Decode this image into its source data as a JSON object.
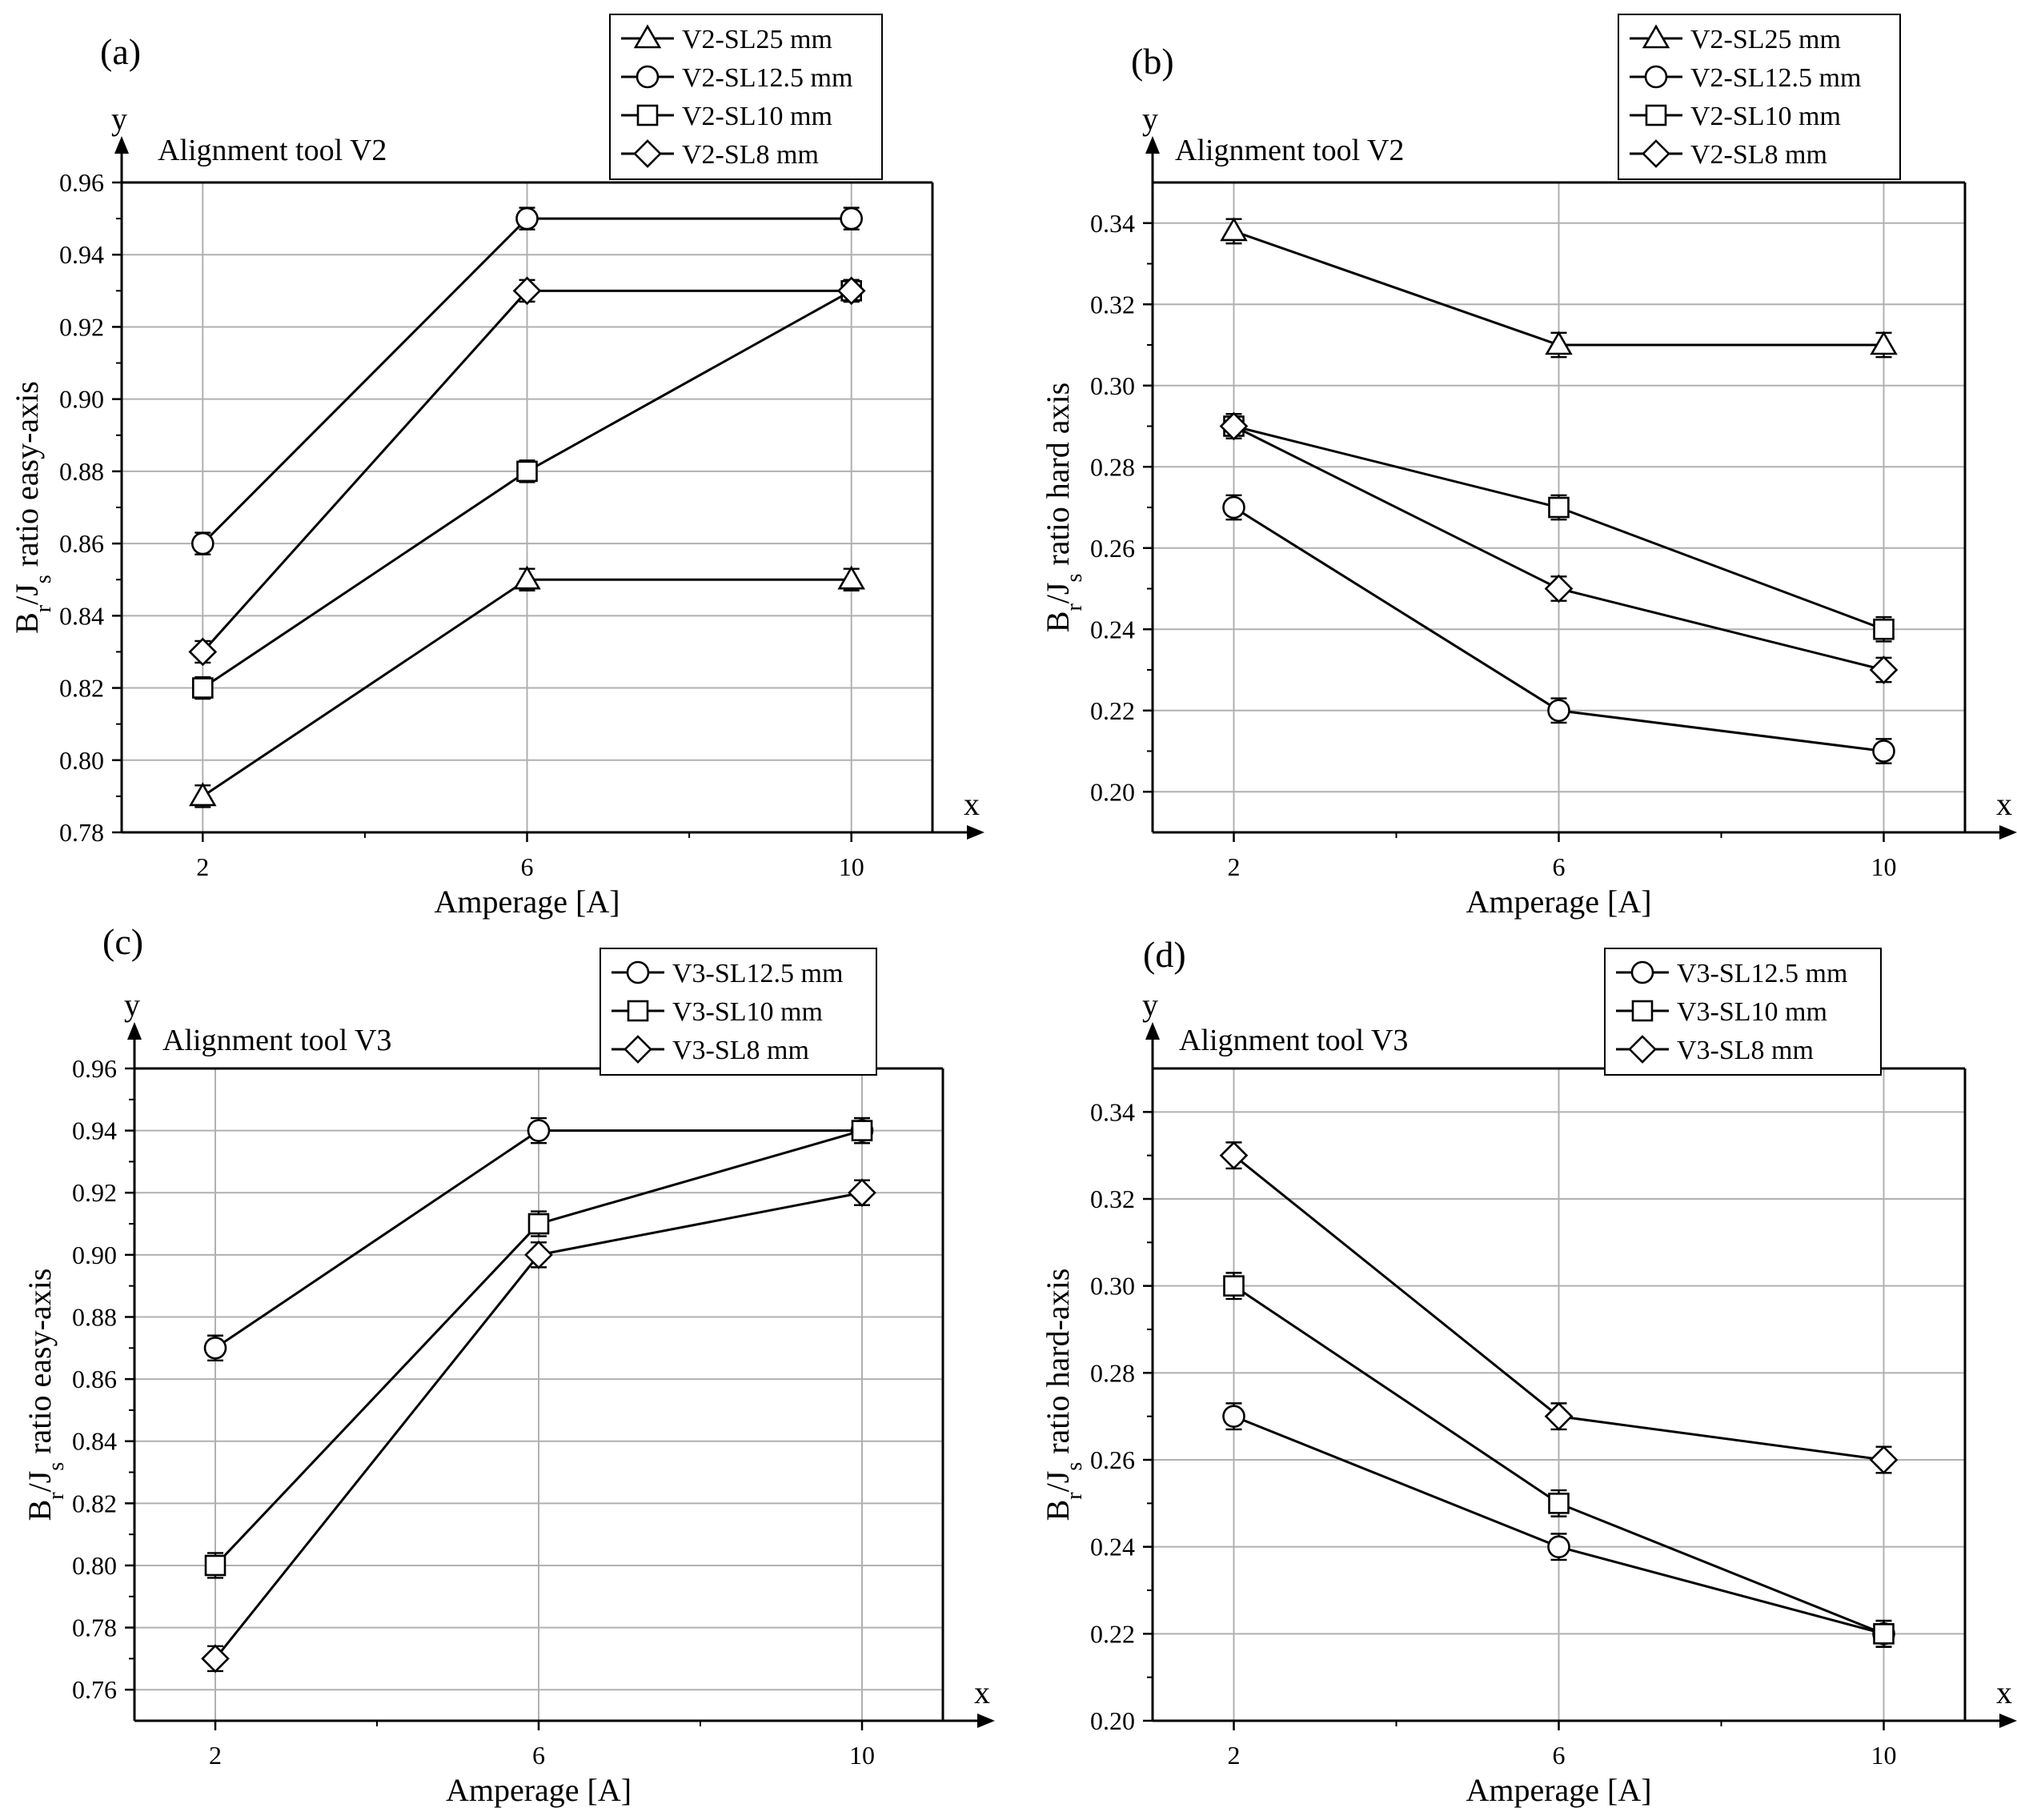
{
  "chart_data": [
    {
      "id": "a",
      "type": "line",
      "panel_label": "(a)",
      "annotation": "Alignment tool V2",
      "xlabel": "Amperage [A]",
      "ylabel": "Br/Js ratio easy-axis",
      "ylabel_parts": [
        "B",
        "r",
        "/J",
        "s",
        " ratio easy-axis"
      ],
      "x_axis_letter": "x",
      "y_axis_letter": "y",
      "x": [
        2,
        6,
        10
      ],
      "xlim": [
        1,
        11
      ],
      "ylim": [
        0.78,
        0.96
      ],
      "yticks": [
        0.78,
        0.8,
        0.82,
        0.84,
        0.86,
        0.88,
        0.9,
        0.92,
        0.94,
        0.96
      ],
      "ytick_labels": [
        "0.78",
        "0.80",
        "0.82",
        "0.84",
        "0.86",
        "0.88",
        "0.90",
        "0.92",
        "0.94",
        "0.96"
      ],
      "xtick_labels": [
        "2",
        "6",
        "10"
      ],
      "grid": true,
      "legend_position": "top-right",
      "error": 0.003,
      "series": [
        {
          "name": "V2-SL25 mm",
          "marker": "triangle",
          "values": [
            0.79,
            0.85,
            0.85
          ]
        },
        {
          "name": "V2-SL12.5 mm",
          "marker": "circle",
          "values": [
            0.86,
            0.95,
            0.95
          ]
        },
        {
          "name": "V2-SL10 mm",
          "marker": "square",
          "values": [
            0.82,
            0.88,
            0.93
          ]
        },
        {
          "name": "V2-SL8 mm",
          "marker": "diamond",
          "values": [
            0.83,
            0.93,
            0.93
          ]
        }
      ]
    },
    {
      "id": "b",
      "type": "line",
      "panel_label": "(b)",
      "annotation": "Alignment tool V2",
      "xlabel": "Amperage [A]",
      "ylabel": "Br/Js ratio hard axis",
      "ylabel_parts": [
        "B",
        "r",
        "/J",
        "s",
        " ratio hard axis"
      ],
      "x_axis_letter": "x",
      "y_axis_letter": "y",
      "x": [
        2,
        6,
        10
      ],
      "xlim": [
        1,
        11
      ],
      "ylim": [
        0.19,
        0.35
      ],
      "yticks": [
        0.2,
        0.22,
        0.24,
        0.26,
        0.28,
        0.3,
        0.32,
        0.34
      ],
      "ytick_labels": [
        "0.20",
        "0.22",
        "0.24",
        "0.26",
        "0.28",
        "0.30",
        "0.32",
        "0.34"
      ],
      "xtick_labels": [
        "2",
        "6",
        "10"
      ],
      "grid": true,
      "legend_position": "top-right",
      "error": 0.003,
      "series": [
        {
          "name": "V2-SL25 mm",
          "marker": "triangle",
          "values": [
            0.338,
            0.31,
            0.31
          ]
        },
        {
          "name": "V2-SL12.5 mm",
          "marker": "circle",
          "values": [
            0.27,
            0.22,
            0.21
          ]
        },
        {
          "name": "V2-SL10 mm",
          "marker": "square",
          "values": [
            0.29,
            0.27,
            0.24
          ]
        },
        {
          "name": "V2-SL8 mm",
          "marker": "diamond",
          "values": [
            0.29,
            0.25,
            0.23
          ]
        }
      ]
    },
    {
      "id": "c",
      "type": "line",
      "panel_label": "(c)",
      "annotation": "Alignment tool V3",
      "xlabel": "Amperage [A]",
      "ylabel": "Br/Js ratio easy-axis",
      "ylabel_parts": [
        "B",
        "r",
        "/J",
        "s",
        " ratio easy-axis"
      ],
      "x_axis_letter": "x",
      "y_axis_letter": "y",
      "x": [
        2,
        6,
        10
      ],
      "xlim": [
        1,
        11
      ],
      "ylim": [
        0.75,
        0.96
      ],
      "yticks": [
        0.76,
        0.78,
        0.8,
        0.82,
        0.84,
        0.86,
        0.88,
        0.9,
        0.92,
        0.94,
        0.96
      ],
      "ytick_labels": [
        "0.76",
        "0.78",
        "0.80",
        "0.82",
        "0.84",
        "0.86",
        "0.88",
        "0.90",
        "0.92",
        "0.94",
        "0.96"
      ],
      "xtick_labels": [
        "2",
        "6",
        "10"
      ],
      "grid": true,
      "legend_position": "top-right",
      "error": 0.004,
      "series": [
        {
          "name": "V3-SL12.5 mm",
          "marker": "circle",
          "values": [
            0.87,
            0.94,
            0.94
          ]
        },
        {
          "name": "V3-SL10 mm",
          "marker": "square",
          "values": [
            0.8,
            0.91,
            0.94
          ]
        },
        {
          "name": "V3-SL8 mm",
          "marker": "diamond",
          "values": [
            0.77,
            0.9,
            0.92
          ]
        }
      ]
    },
    {
      "id": "d",
      "type": "line",
      "panel_label": "(d)",
      "annotation": "Alignment tool V3",
      "xlabel": "Amperage [A]",
      "ylabel": "Br/Js ratio hard-axis",
      "ylabel_parts": [
        "B",
        "r",
        "/J",
        "s",
        " ratio hard-axis"
      ],
      "x_axis_letter": "x",
      "y_axis_letter": "y",
      "x": [
        2,
        6,
        10
      ],
      "xlim": [
        1,
        11
      ],
      "ylim": [
        0.2,
        0.35
      ],
      "yticks": [
        0.2,
        0.22,
        0.24,
        0.26,
        0.28,
        0.3,
        0.32,
        0.34
      ],
      "ytick_labels": [
        "0.20",
        "0.22",
        "0.24",
        "0.26",
        "0.28",
        "0.30",
        "0.32",
        "0.34"
      ],
      "xtick_labels": [
        "2",
        "6",
        "10"
      ],
      "grid": true,
      "legend_position": "top-right",
      "error": 0.003,
      "series": [
        {
          "name": "V3-SL12.5 mm",
          "marker": "circle",
          "values": [
            0.27,
            0.24,
            0.22
          ]
        },
        {
          "name": "V3-SL10 mm",
          "marker": "square",
          "values": [
            0.3,
            0.25,
            0.22
          ]
        },
        {
          "name": "V3-SL8 mm",
          "marker": "diamond",
          "values": [
            0.33,
            0.27,
            0.26
          ]
        }
      ]
    }
  ]
}
